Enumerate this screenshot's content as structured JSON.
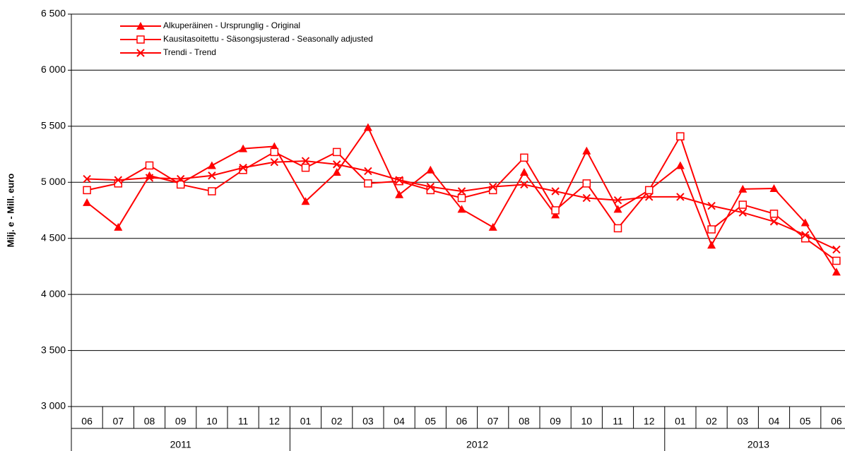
{
  "chart_data": {
    "type": "line",
    "y_label": "Milj. e - Mill. euro",
    "categories": [
      "06",
      "07",
      "08",
      "09",
      "10",
      "11",
      "12",
      "01",
      "02",
      "03",
      "04",
      "05",
      "06",
      "07",
      "08",
      "09",
      "10",
      "11",
      "12",
      "01",
      "02",
      "03",
      "04",
      "05",
      "06"
    ],
    "x_groups": [
      {
        "label": "2011",
        "start": 0,
        "end": 6
      },
      {
        "label": "2012",
        "start": 7,
        "end": 18
      },
      {
        "label": "2013",
        "start": 19,
        "end": 24
      }
    ],
    "series": [
      {
        "name": "Alkuperäinen - Ursprunglig - Original",
        "color": "#ff0000",
        "marker": "triangle",
        "values": [
          4820,
          4600,
          5060,
          4990,
          5150,
          5300,
          5320,
          4830,
          5090,
          5490,
          4890,
          5110,
          4760,
          4600,
          5090,
          4710,
          5280,
          4760,
          4930,
          5150,
          4440,
          4940,
          4945,
          4640,
          4200
        ]
      },
      {
        "name": "Kausitasoitettu - Säsongsjusterad - Seasonally adjusted",
        "color": "#ff0000",
        "marker": "square",
        "values": [
          4930,
          4990,
          5150,
          4980,
          4920,
          5110,
          5270,
          5130,
          5270,
          4990,
          5010,
          4930,
          4860,
          4930,
          5220,
          4750,
          4990,
          4590,
          4930,
          5410,
          4580,
          4800,
          4720,
          4500,
          4300
        ]
      },
      {
        "name": "Trendi - Trend",
        "color": "#ff0000",
        "marker": "cross",
        "values": [
          5030,
          5020,
          5040,
          5030,
          5060,
          5130,
          5180,
          5190,
          5160,
          5100,
          5020,
          4960,
          4920,
          4960,
          4980,
          4920,
          4860,
          4840,
          4870,
          4870,
          4790,
          4730,
          4650,
          4530,
          4400
        ]
      }
    ],
    "ylim": [
      3000,
      6500
    ],
    "yticks": [
      {
        "value": 3000,
        "label": "3 000"
      },
      {
        "value": 3500,
        "label": "3 500"
      },
      {
        "value": 4000,
        "label": "4 000"
      },
      {
        "value": 4500,
        "label": "4 500"
      },
      {
        "value": 5000,
        "label": "5 000"
      },
      {
        "value": 5500,
        "label": "5 500"
      },
      {
        "value": 6000,
        "label": "6 000"
      },
      {
        "value": 6500,
        "label": "6 500"
      }
    ],
    "grid": true,
    "legend": "top-left"
  }
}
